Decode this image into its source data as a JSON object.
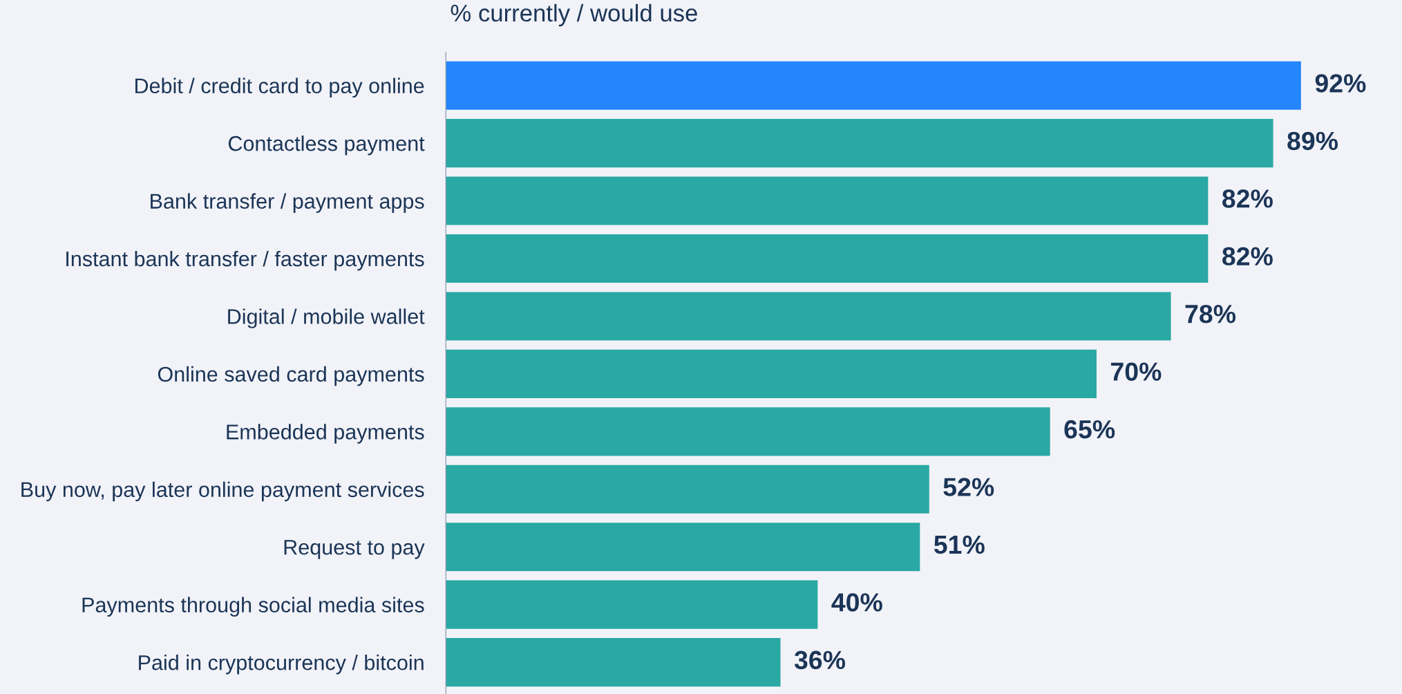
{
  "chart_data": {
    "type": "bar",
    "orientation": "horizontal",
    "title": "% currently / would use",
    "categories": [
      "Debit / credit card to pay online",
      "Contactless payment",
      "Bank transfer / payment apps",
      "Instant bank transfer / faster payments",
      "Digital / mobile wallet",
      "Online saved card payments",
      "Embedded payments",
      "Buy now, pay later online payment services",
      "Request to pay",
      "Payments through social media sites",
      "Paid in cryptocurrency / bitcoin"
    ],
    "values": [
      92,
      89,
      82,
      82,
      78,
      70,
      65,
      52,
      51,
      40,
      36
    ],
    "colors": [
      "#2585fc",
      "#2aa8a4",
      "#2aa8a4",
      "#2aa8a4",
      "#2aa8a4",
      "#2aa8a4",
      "#2aa8a4",
      "#2aa8a4",
      "#2aa8a4",
      "#2aa8a4",
      "#2aa8a4"
    ],
    "value_labels": [
      "92%",
      "89%",
      "82%",
      "82%",
      "78%",
      "70%",
      "65%",
      "52%",
      "51%",
      "40%",
      "36%"
    ],
    "grid": false,
    "legend": false
  }
}
